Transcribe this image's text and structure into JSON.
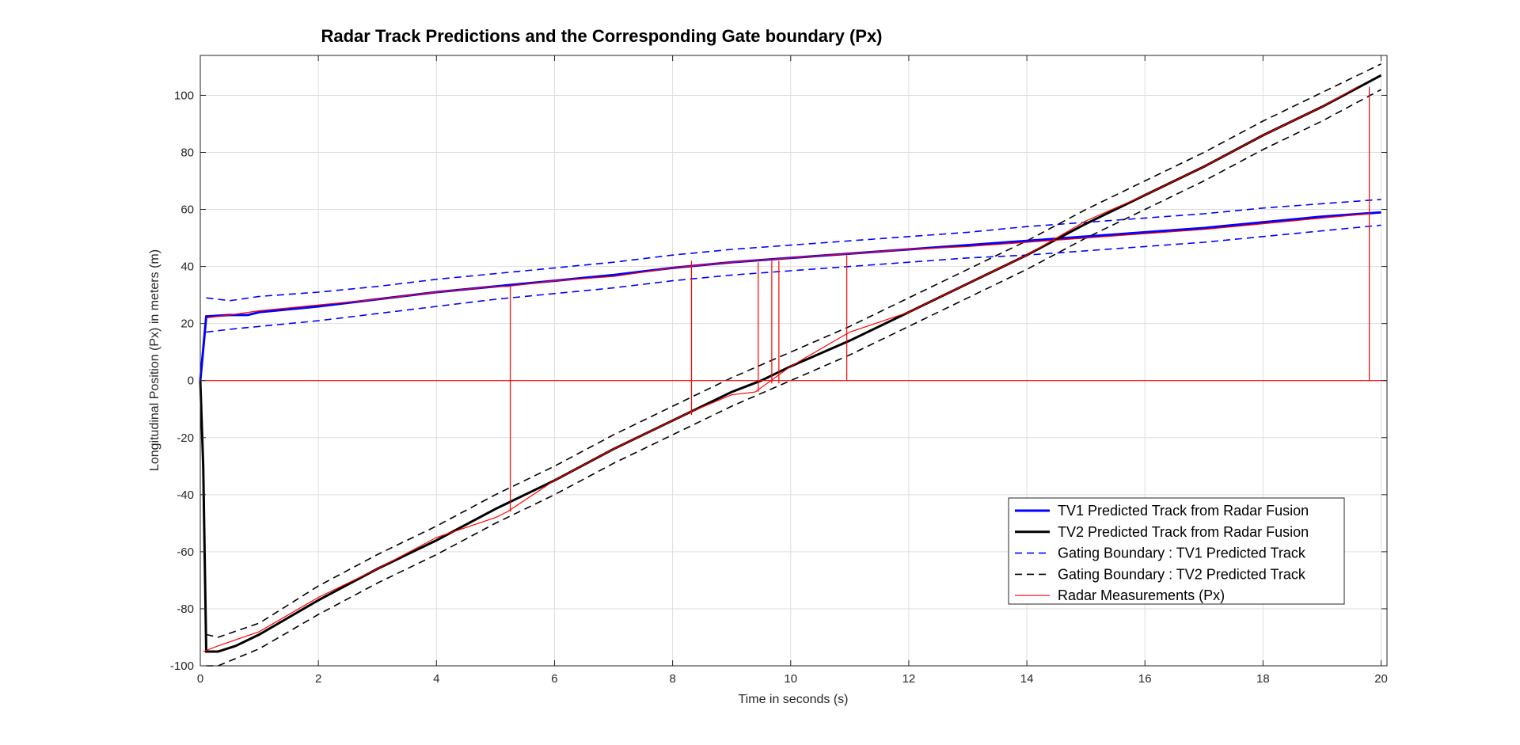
{
  "chart_data": {
    "type": "line",
    "title": "Radar Track Predictions and the Corresponding Gate boundary (Px)",
    "xlabel": "Time in seconds (s)",
    "ylabel": "Longitudinal Position (Px) in meters (m)",
    "xlim": [
      0,
      20.1
    ],
    "ylim": [
      -100,
      114
    ],
    "xticks": [
      0,
      2,
      4,
      6,
      8,
      10,
      12,
      14,
      16,
      18,
      20
    ],
    "yticks": [
      -100,
      -80,
      -60,
      -40,
      -20,
      0,
      20,
      40,
      60,
      80,
      100
    ],
    "grid": true,
    "legend_position": "bottom-right",
    "series": [
      {
        "name": "TV1 Predicted Track from Radar Fusion",
        "color": "#0000ff",
        "style": "solid",
        "x": [
          0,
          0.1,
          0.5,
          0.8,
          1,
          2,
          3,
          4,
          5,
          6,
          7,
          8,
          9,
          10,
          11,
          12,
          13,
          14,
          15,
          16,
          17,
          18,
          19,
          20
        ],
        "y": [
          0,
          22.5,
          23,
          23,
          24,
          26,
          28.5,
          31,
          33,
          35,
          37,
          39.5,
          41.5,
          43,
          44.5,
          46,
          47.5,
          49,
          50.5,
          52,
          53.5,
          55.5,
          57.5,
          59
        ]
      },
      {
        "name": "TV2 Predicted Track from Radar Fusion",
        "color": "#000000",
        "style": "solid",
        "x": [
          0,
          0.05,
          0.1,
          0.3,
          0.6,
          1,
          2,
          3,
          4,
          5,
          6,
          7,
          8,
          9,
          9.5,
          10,
          11,
          12,
          13,
          14,
          15,
          16,
          17,
          18,
          19,
          20
        ],
        "y": [
          0,
          -30,
          -95,
          -95,
          -93,
          -89,
          -77,
          -66,
          -56,
          -45,
          -35,
          -24,
          -14,
          -4,
          0,
          5,
          14,
          24,
          34,
          44,
          55,
          65,
          75,
          86,
          96,
          107
        ]
      },
      {
        "name": "Gating Boundary : TV1 Predicted Track",
        "color": "#0000ff",
        "style": "dashed",
        "x": [
          0.1,
          0.5,
          1,
          2,
          3,
          4,
          5,
          6,
          7,
          8,
          9,
          10,
          11,
          12,
          13,
          14,
          15,
          16,
          17,
          18,
          19,
          20
        ],
        "y": [
          29,
          28,
          29.5,
          31,
          33,
          35.5,
          37.5,
          39.5,
          41.5,
          44,
          46,
          47.5,
          49,
          50.5,
          52,
          54,
          55.5,
          57,
          58.5,
          60.5,
          62,
          63.5
        ],
        "y_lower": [
          17,
          18,
          19,
          21,
          23.5,
          26,
          28.5,
          30.5,
          32.5,
          35,
          37,
          38.5,
          40,
          41.5,
          43,
          44,
          45.5,
          47,
          48.5,
          50.5,
          52.5,
          54.5
        ]
      },
      {
        "name": "Gating Boundary : TV2 Predicted Track",
        "color": "#000000",
        "style": "dashed",
        "x": [
          0.1,
          0.3,
          1,
          2,
          3,
          4,
          5,
          6,
          7,
          8,
          9,
          10,
          11,
          12,
          13,
          14,
          15,
          16,
          17,
          18,
          19,
          20
        ],
        "y": [
          -89,
          -90,
          -85,
          -72,
          -61,
          -51,
          -40,
          -30,
          -19,
          -9,
          1,
          10,
          19,
          29,
          39,
          49,
          60,
          70,
          80,
          91,
          101,
          111
        ],
        "y_lower": [
          -100,
          -100,
          -94,
          -82,
          -71,
          -61,
          -50,
          -40,
          -29,
          -19,
          -9,
          0,
          9,
          19,
          29,
          39,
          50,
          60,
          70,
          81,
          91,
          102
        ]
      },
      {
        "name": "Radar Measurements (Px)",
        "color": "#ff0000",
        "style": "solid",
        "zero_line_x": [
          0,
          20.1
        ],
        "tv1_measurements_x": [
          0.1,
          0.5,
          1,
          2,
          3,
          4,
          5,
          5.2,
          6,
          7,
          8,
          9,
          10,
          11,
          12,
          13,
          14,
          15,
          16,
          17,
          18,
          19,
          19.8
        ],
        "tv1_measurements_y": [
          22,
          23,
          24.5,
          26.5,
          28.5,
          31,
          33,
          33,
          35,
          36.5,
          39.5,
          41.5,
          43,
          44.5,
          46,
          47,
          48.5,
          50,
          51.5,
          53,
          55,
          57,
          58.5
        ],
        "tv2_measurements_x": [
          0.05,
          0.3,
          1,
          2,
          3,
          4,
          5,
          5.2,
          6,
          7,
          8,
          8.3,
          9,
          9.4,
          10,
          11,
          12,
          13,
          14,
          15,
          16,
          17,
          18,
          19,
          19.6
        ],
        "tv2_measurements_y": [
          -95,
          -93,
          -88,
          -76,
          -66,
          -55,
          -48,
          -46,
          -35,
          -24,
          -14,
          -11,
          -5,
          -4,
          5,
          17,
          24,
          34,
          44,
          56,
          65,
          75,
          86,
          96,
          103
        ],
        "spikes": [
          {
            "x": 5.25,
            "low": -46,
            "high": 33
          },
          {
            "x": 8.32,
            "low": -12,
            "high": 42
          },
          {
            "x": 9.45,
            "low": -4,
            "high": 41.5
          },
          {
            "x": 9.68,
            "low": -1,
            "high": 42
          },
          {
            "x": 9.8,
            "low": -1,
            "high": 42
          },
          {
            "x": 10.95,
            "low": 0,
            "high": 44
          },
          {
            "x": 19.8,
            "low": 0,
            "high": 103
          }
        ]
      }
    ]
  }
}
